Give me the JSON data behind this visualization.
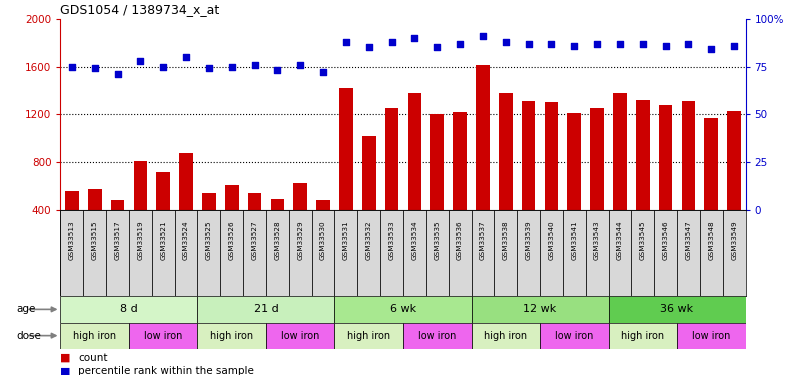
{
  "title": "GDS1054 / 1389734_x_at",
  "samples": [
    "GSM33513",
    "GSM33515",
    "GSM33517",
    "GSM33519",
    "GSM33521",
    "GSM33524",
    "GSM33525",
    "GSM33526",
    "GSM33527",
    "GSM33528",
    "GSM33529",
    "GSM33530",
    "GSM33531",
    "GSM33532",
    "GSM33533",
    "GSM33534",
    "GSM33535",
    "GSM33536",
    "GSM33537",
    "GSM33538",
    "GSM33539",
    "GSM33540",
    "GSM33541",
    "GSM33543",
    "GSM33544",
    "GSM33545",
    "GSM33546",
    "GSM33547",
    "GSM33548",
    "GSM33549"
  ],
  "counts": [
    560,
    575,
    480,
    810,
    720,
    880,
    540,
    610,
    540,
    495,
    630,
    480,
    1420,
    1020,
    1255,
    1380,
    1200,
    1220,
    1610,
    1380,
    1310,
    1300,
    1210,
    1250,
    1380,
    1320,
    1280,
    1310,
    1170,
    1230
  ],
  "percentiles": [
    75,
    74,
    71,
    78,
    75,
    80,
    74,
    75,
    76,
    73,
    76,
    72,
    88,
    85,
    88,
    90,
    85,
    87,
    91,
    88,
    87,
    87,
    86,
    87,
    87,
    87,
    86,
    87,
    84,
    86
  ],
  "age_groups": [
    {
      "label": "8 d",
      "start": 0,
      "end": 6,
      "color": "#d4f5c8"
    },
    {
      "label": "21 d",
      "start": 6,
      "end": 12,
      "color": "#c8f0bc"
    },
    {
      "label": "6 wk",
      "start": 12,
      "end": 18,
      "color": "#a8e890"
    },
    {
      "label": "12 wk",
      "start": 18,
      "end": 24,
      "color": "#98e080"
    },
    {
      "label": "36 wk",
      "start": 24,
      "end": 30,
      "color": "#60cc50"
    }
  ],
  "dose_groups": [
    {
      "label": "high iron",
      "start": 0,
      "end": 3,
      "color": "#d8f0c0"
    },
    {
      "label": "low iron",
      "start": 3,
      "end": 6,
      "color": "#ee66ee"
    },
    {
      "label": "high iron",
      "start": 6,
      "end": 9,
      "color": "#d8f0c0"
    },
    {
      "label": "low iron",
      "start": 9,
      "end": 12,
      "color": "#ee66ee"
    },
    {
      "label": "high iron",
      "start": 12,
      "end": 15,
      "color": "#d8f0c0"
    },
    {
      "label": "low iron",
      "start": 15,
      "end": 18,
      "color": "#ee66ee"
    },
    {
      "label": "high iron",
      "start": 18,
      "end": 21,
      "color": "#d8f0c0"
    },
    {
      "label": "low iron",
      "start": 21,
      "end": 24,
      "color": "#ee66ee"
    },
    {
      "label": "high iron",
      "start": 24,
      "end": 27,
      "color": "#d8f0c0"
    },
    {
      "label": "low iron",
      "start": 27,
      "end": 30,
      "color": "#ee66ee"
    }
  ],
  "ylim_left": [
    400,
    2000
  ],
  "ylim_right": [
    0,
    100
  ],
  "bar_color": "#cc0000",
  "dot_color": "#0000cc",
  "yticks_left": [
    400,
    800,
    1200,
    1600,
    2000
  ],
  "yticks_right": [
    0,
    25,
    50,
    75,
    100
  ],
  "grid_vals": [
    800,
    1200,
    1600
  ],
  "xtick_bg": "#d8d8d8"
}
